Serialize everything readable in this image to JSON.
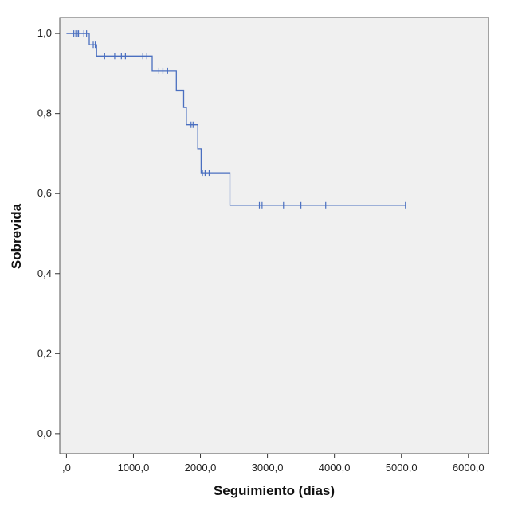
{
  "chart_data": {
    "type": "line",
    "subtype": "kaplan-meier step",
    "title": "",
    "xlabel": "Seguimiento (días)",
    "ylabel": "Sobrevida",
    "xlim": [
      -100,
      6300
    ],
    "ylim": [
      -0.05,
      1.04
    ],
    "x_ticks": [
      0,
      1000,
      2000,
      3000,
      4000,
      5000,
      6000
    ],
    "x_tick_labels": [
      ",0",
      "1000,0",
      "2000,0",
      "3000,0",
      "4000,0",
      "5000,0",
      "6000,0"
    ],
    "y_ticks": [
      0,
      0.2,
      0.4,
      0.6,
      0.8,
      1.0
    ],
    "y_tick_labels": [
      "0,0",
      "0,2",
      "0,4",
      "0,6",
      "0,8",
      "1,0"
    ],
    "grid": false,
    "colors": {
      "line": "#4a6fc0",
      "plot_bg": "#f0f0f0",
      "frame": "#555555"
    },
    "series": [
      {
        "steps": [
          [
            0,
            1.0
          ],
          [
            340,
            1.0
          ],
          [
            340,
            0.972
          ],
          [
            450,
            0.972
          ],
          [
            450,
            0.944
          ],
          [
            1280,
            0.944
          ],
          [
            1280,
            0.907
          ],
          [
            1640,
            0.907
          ],
          [
            1640,
            0.858
          ],
          [
            1750,
            0.858
          ],
          [
            1750,
            0.815
          ],
          [
            1790,
            0.815
          ],
          [
            1790,
            0.772
          ],
          [
            1960,
            0.772
          ],
          [
            1960,
            0.712
          ],
          [
            2010,
            0.712
          ],
          [
            2010,
            0.652
          ],
          [
            2440,
            0.652
          ],
          [
            2440,
            0.571
          ],
          [
            5060,
            0.571
          ]
        ],
        "censored": [
          [
            110,
            1.0
          ],
          [
            140,
            1.0
          ],
          [
            160,
            1.0
          ],
          [
            180,
            1.0
          ],
          [
            260,
            1.0
          ],
          [
            300,
            1.0
          ],
          [
            400,
            0.972
          ],
          [
            430,
            0.972
          ],
          [
            570,
            0.944
          ],
          [
            720,
            0.944
          ],
          [
            820,
            0.944
          ],
          [
            880,
            0.944
          ],
          [
            1140,
            0.944
          ],
          [
            1200,
            0.944
          ],
          [
            1380,
            0.907
          ],
          [
            1440,
            0.907
          ],
          [
            1510,
            0.907
          ],
          [
            1860,
            0.772
          ],
          [
            1890,
            0.772
          ],
          [
            2030,
            0.652
          ],
          [
            2070,
            0.652
          ],
          [
            2130,
            0.652
          ],
          [
            2880,
            0.571
          ],
          [
            2920,
            0.571
          ],
          [
            3240,
            0.571
          ],
          [
            3500,
            0.571
          ],
          [
            3870,
            0.571
          ],
          [
            5060,
            0.571
          ]
        ]
      }
    ]
  }
}
